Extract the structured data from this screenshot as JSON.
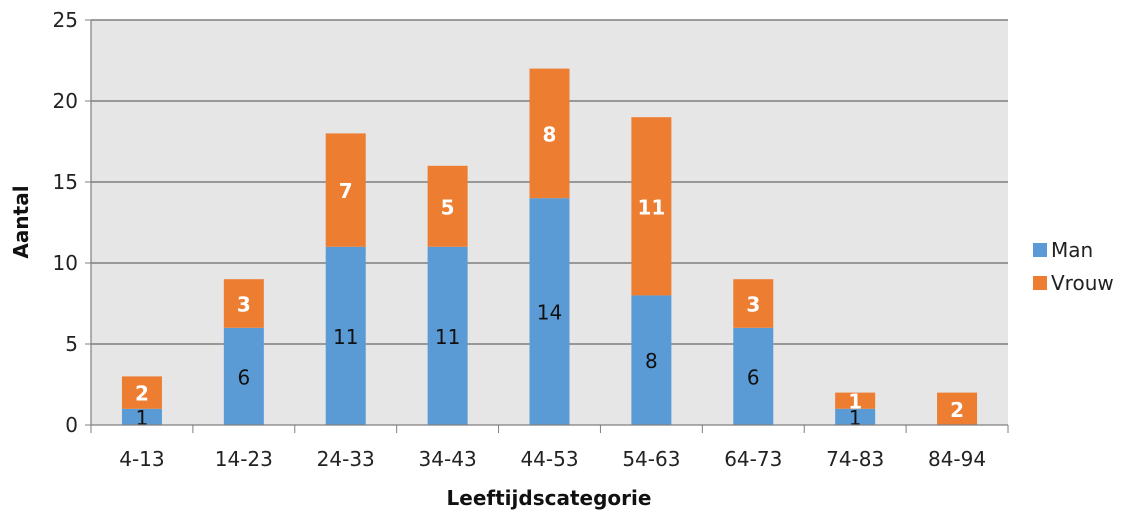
{
  "chart_data": {
    "type": "bar",
    "stacked": true,
    "categories": [
      "4-13",
      "14-23",
      "24-33",
      "34-43",
      "44-53",
      "54-63",
      "64-73",
      "74-83",
      "84-94"
    ],
    "series": [
      {
        "name": "Man",
        "values": [
          1,
          6,
          11,
          11,
          14,
          8,
          6,
          1,
          0
        ],
        "color": "#5b9bd5"
      },
      {
        "name": "Vrouw",
        "values": [
          2,
          3,
          7,
          5,
          8,
          11,
          3,
          1,
          2
        ],
        "color": "#ed7d31"
      }
    ],
    "xlabel": "Leeftijdscategorie",
    "ylabel": "Aantal",
    "ylim": [
      0,
      25
    ],
    "yticks": [
      0,
      5,
      10,
      15,
      20,
      25
    ],
    "grid": true,
    "plot_background": "#e6e6e6",
    "legend_position": "right"
  }
}
